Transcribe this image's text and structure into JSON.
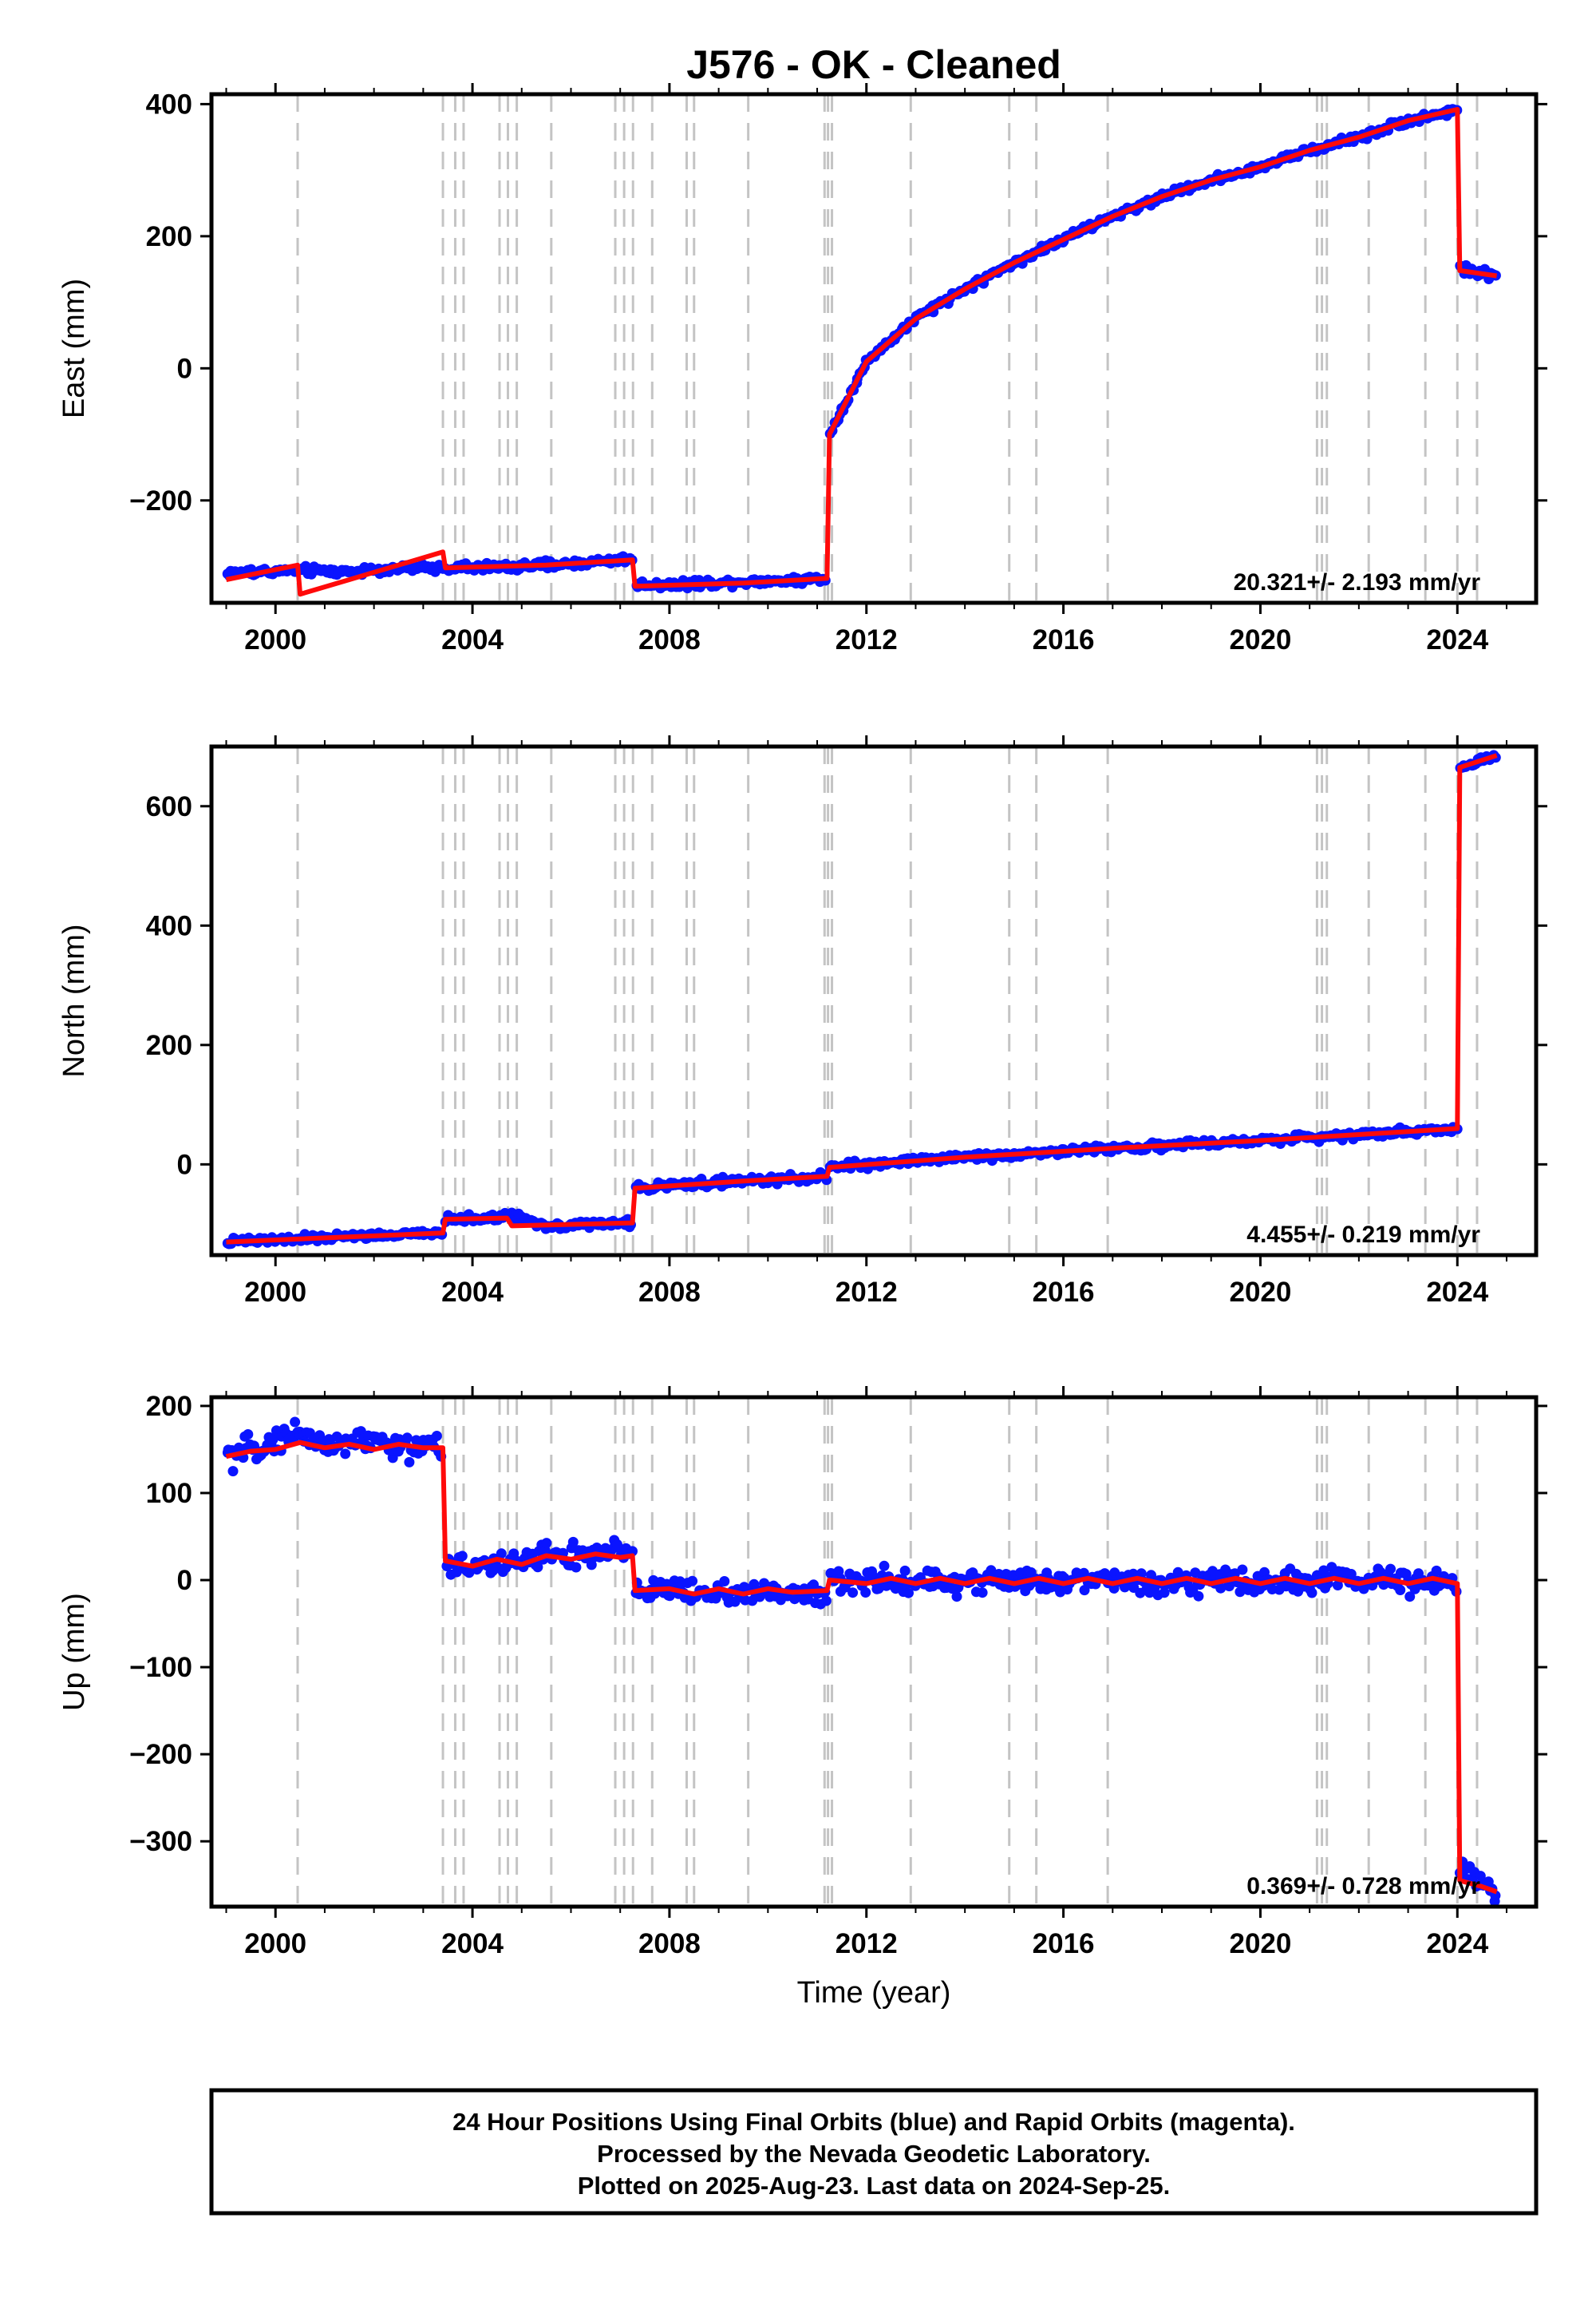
{
  "title": "J576  - OK - Cleaned",
  "colors": {
    "data_points": "#0a14ff",
    "model_line": "#ff0a0a",
    "event_lines": "#c4c4c4",
    "frame": "#000000"
  },
  "chart_data": [
    {
      "type": "scatter",
      "panel": "east",
      "ylabel": "East (mm)",
      "xlabel": "",
      "xlim": [
        1998.7,
        2025.6
      ],
      "ylim": [
        -355,
        415
      ],
      "x_ticks": [
        2000,
        2004,
        2008,
        2012,
        2016,
        2020,
        2024
      ],
      "x_tick_labels": [
        "2000",
        "2004",
        "2008",
        "2012",
        "2016",
        "2020",
        "2024"
      ],
      "y_ticks": [
        -200,
        0,
        200,
        400
      ],
      "y_tick_labels": [
        "−200",
        "0",
        "200",
        "400"
      ],
      "rate_label": "20.321+/- 2.193 mm/yr",
      "series": [
        {
          "kind": "points",
          "x": [
            1999.0,
            2000.5,
            2001.5,
            2002.5,
            2003.4,
            2004.5,
            2005.5,
            2006.5,
            2007.25,
            2007.3,
            2008.5,
            2009.5,
            2010.5,
            2011.2,
            2011.25,
            2012.0,
            2013.0,
            2014.0,
            2015.0,
            2016.0,
            2017.0,
            2018.0,
            2019.0,
            2020.0,
            2021.0,
            2022.0,
            2023.0,
            2024.0,
            2024.05,
            2024.8
          ],
          "y": [
            -310,
            -306,
            -308,
            -303,
            -302,
            -301,
            -298,
            -293,
            -288,
            -328,
            -326,
            -323,
            -321,
            -318,
            -100,
            10,
            75,
            120,
            160,
            195,
            230,
            260,
            285,
            305,
            330,
            350,
            375,
            392,
            150,
            140
          ]
        },
        {
          "kind": "model",
          "x": [
            1999.0,
            2000.45,
            2000.5,
            2001.5,
            2003.4,
            2003.45,
            2005.5,
            2007.25,
            2007.3,
            2009.5,
            2011.2,
            2011.25,
            2012.0,
            2013.0,
            2014.0,
            2015.0,
            2016.0,
            2017.0,
            2018.0,
            2019.0,
            2020.0,
            2021.0,
            2022.0,
            2023.0,
            2024.0,
            2024.05,
            2024.8
          ],
          "y": [
            -320,
            -298,
            -342,
            -320,
            -278,
            -302,
            -298,
            -290,
            -330,
            -325,
            -318,
            -100,
            10,
            75,
            120,
            160,
            195,
            230,
            260,
            285,
            305,
            330,
            350,
            375,
            392,
            148,
            140
          ]
        }
      ]
    },
    {
      "type": "scatter",
      "panel": "north",
      "ylabel": "North (mm)",
      "xlabel": "",
      "xlim": [
        1998.7,
        2025.6
      ],
      "ylim": [
        -152,
        700
      ],
      "x_ticks": [
        2000,
        2004,
        2008,
        2012,
        2016,
        2020,
        2024
      ],
      "x_tick_labels": [
        "2000",
        "2004",
        "2008",
        "2012",
        "2016",
        "2020",
        "2024"
      ],
      "y_ticks": [
        0,
        200,
        400,
        600
      ],
      "y_tick_labels": [
        "0",
        "200",
        "400",
        "600"
      ],
      "rate_label": "4.455+/- 0.219 mm/yr",
      "series": [
        {
          "kind": "points",
          "x": [
            1999.0,
            2000.5,
            2001.5,
            2002.5,
            2003.4,
            2003.45,
            2004.5,
            2004.8,
            2005.5,
            2006.5,
            2007.25,
            2007.3,
            2008.5,
            2009.5,
            2010.5,
            2011.2,
            2011.25,
            2012.0,
            2013.0,
            2014.0,
            2015.0,
            2016.0,
            2017.0,
            2018.0,
            2019.0,
            2020.0,
            2021.0,
            2022.0,
            2023.0,
            2024.0,
            2024.05,
            2024.8
          ],
          "y": [
            -130,
            -125,
            -120,
            -118,
            -115,
            -92,
            -90,
            -85,
            -103,
            -100,
            -98,
            -40,
            -32,
            -28,
            -24,
            -20,
            -5,
            0,
            7,
            12,
            17,
            22,
            27,
            31,
            35,
            40,
            45,
            50,
            55,
            60,
            665,
            685
          ]
        },
        {
          "kind": "model",
          "x": [
            1999.0,
            2003.4,
            2003.45,
            2004.7,
            2004.8,
            2007.25,
            2007.3,
            2009.5,
            2011.2,
            2011.25,
            2014.0,
            2017.0,
            2020.0,
            2023.0,
            2024.0,
            2024.05,
            2024.8
          ],
          "y": [
            -130,
            -115,
            -92,
            -90,
            -103,
            -98,
            -40,
            -28,
            -20,
            -5,
            12,
            27,
            40,
            55,
            60,
            665,
            685
          ]
        }
      ]
    },
    {
      "type": "scatter",
      "panel": "up",
      "ylabel": "Up (mm)",
      "xlabel": "Time (year)",
      "xlim": [
        1998.7,
        2025.6
      ],
      "ylim": [
        -375,
        210
      ],
      "x_ticks": [
        2000,
        2004,
        2008,
        2012,
        2016,
        2020,
        2024
      ],
      "x_tick_labels": [
        "2000",
        "2004",
        "2008",
        "2012",
        "2016",
        "2020",
        "2024"
      ],
      "y_ticks": [
        -300,
        -200,
        -100,
        0,
        100,
        200
      ],
      "y_tick_labels": [
        "−300",
        "−200",
        "−100",
        "0",
        "100",
        "200"
      ],
      "rate_label": "0.369+/- 0.728 mm/yr",
      "series": [
        {
          "kind": "points",
          "x": [
            1999.0,
            1999.5,
            2000.0,
            2000.5,
            2001.0,
            2001.5,
            2002.0,
            2002.5,
            2003.0,
            2003.4,
            2003.45,
            2004.0,
            2004.5,
            2005.0,
            2005.5,
            2006.0,
            2006.5,
            2007.0,
            2007.25,
            2007.3,
            2008.0,
            2009.0,
            2010.0,
            2011.2,
            2011.25,
            2012.0,
            2013.0,
            2014.0,
            2015.0,
            2016.0,
            2017.0,
            2018.0,
            2019.0,
            2020.0,
            2021.0,
            2022.0,
            2023.0,
            2024.0,
            2024.05,
            2024.5,
            2024.8
          ],
          "y": [
            140,
            150,
            160,
            170,
            155,
            158,
            160,
            150,
            155,
            150,
            20,
            15,
            22,
            20,
            30,
            28,
            25,
            35,
            30,
            -10,
            -12,
            -15,
            -15,
            -12,
            0,
            -2,
            0,
            -2,
            0,
            -3,
            0,
            -2,
            0,
            -3,
            0,
            -2,
            0,
            -5,
            -330,
            -350,
            -360
          ]
        },
        {
          "kind": "model",
          "x": [
            1999.0,
            1999.5,
            2000.0,
            2000.5,
            2001.0,
            2001.5,
            2002.0,
            2002.5,
            2003.0,
            2003.4,
            2003.45,
            2004.0,
            2004.5,
            2005.0,
            2005.5,
            2006.0,
            2006.5,
            2007.0,
            2007.25,
            2007.3,
            2008.0,
            2008.5,
            2009.0,
            2009.5,
            2010.0,
            2010.5,
            2011.2,
            2011.25,
            2012.0,
            2012.5,
            2013.0,
            2013.5,
            2014.0,
            2014.5,
            2015.0,
            2015.5,
            2016.0,
            2016.5,
            2017.0,
            2017.5,
            2018.0,
            2018.5,
            2019.0,
            2019.5,
            2020.0,
            2020.5,
            2021.0,
            2021.5,
            2022.0,
            2022.5,
            2023.0,
            2023.5,
            2024.0,
            2024.05,
            2024.5,
            2024.8
          ],
          "y": [
            142,
            148,
            150,
            158,
            152,
            156,
            150,
            156,
            152,
            152,
            22,
            16,
            24,
            18,
            28,
            24,
            30,
            26,
            28,
            -12,
            -10,
            -16,
            -10,
            -16,
            -10,
            -14,
            -12,
            0,
            -4,
            2,
            -4,
            2,
            -4,
            2,
            -4,
            2,
            -4,
            2,
            -4,
            2,
            -4,
            2,
            -4,
            2,
            -4,
            2,
            -4,
            2,
            -4,
            2,
            -4,
            2,
            -4,
            -345,
            -352,
            -358
          ]
        }
      ]
    }
  ],
  "event_years": [
    2000.45,
    2003.4,
    2003.65,
    2003.82,
    2004.55,
    2004.72,
    2004.9,
    2005.6,
    2006.9,
    2007.08,
    2007.26,
    2007.65,
    2008.35,
    2008.5,
    2009.6,
    2011.15,
    2011.22,
    2011.3,
    2012.9,
    2014.9,
    2015.45,
    2016.9,
    2021.15,
    2021.25,
    2021.35,
    2022.2,
    2023.35,
    2024.0,
    2024.4
  ],
  "footer": {
    "line1": "24 Hour Positions Using Final Orbits (blue) and Rapid Orbits (magenta).",
    "line2": "Processed by the Nevada Geodetic Laboratory.",
    "line3": "Plotted on 2025-Aug-23. Last data on 2024-Sep-25."
  }
}
